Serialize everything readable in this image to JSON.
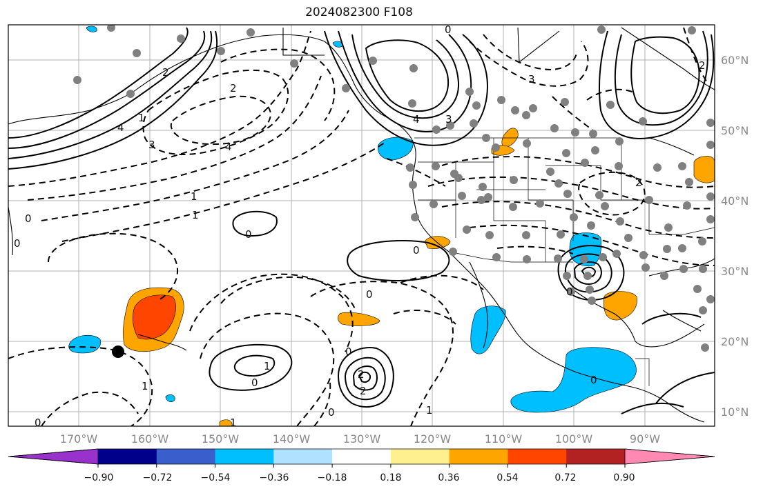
{
  "title": "2024082300 F108",
  "lat_labels": [
    "60°N",
    "50°N",
    "40°N",
    "30°N",
    "20°N",
    "10°N"
  ],
  "lon_labels": [
    "170°W",
    "160°W",
    "150°W",
    "140°W",
    "130°W",
    "120°W",
    "110°W",
    "100°W",
    "90°W"
  ],
  "colorbar": {
    "colors": [
      "#9932cc",
      "#00008b",
      "#3a5fcd",
      "#00bfff",
      "#b0e2ff",
      "#ffffff",
      "#fff08f",
      "#ffa500",
      "#ff4500",
      "#b22222",
      "#ff89b0"
    ],
    "tick_labels": [
      "−0.90",
      "−0.72",
      "−0.54",
      "−0.36",
      "−0.18",
      "0.18",
      "0.36",
      "0.54",
      "0.72",
      "0.90"
    ]
  },
  "contour_labels": [
    "0",
    "4",
    "3",
    "2",
    "1",
    "4",
    "3",
    "1",
    "2",
    "3",
    "0",
    "2",
    "4",
    "1",
    "0",
    "0",
    "0",
    "2",
    "0",
    "0",
    "0",
    "1",
    "1",
    "0",
    "2",
    "2",
    "1",
    "0",
    "0",
    "1",
    "0"
  ]
}
